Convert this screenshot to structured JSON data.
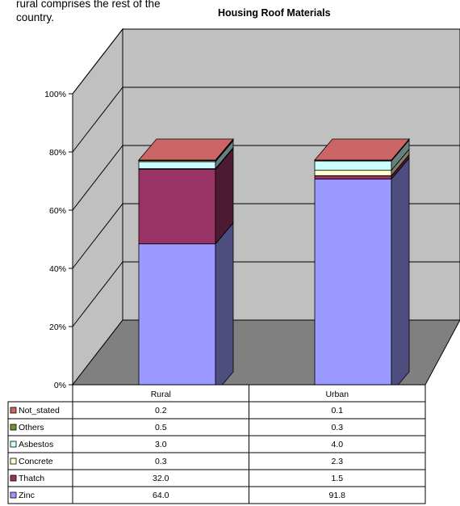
{
  "intro_text": "rural comprises the rest of the\ncountry.",
  "chart_data": {
    "type": "bar",
    "stacked": true,
    "three_d": true,
    "title": "Housing Roof Materials",
    "xlabel": "",
    "ylabel": "",
    "ylim_percent": [
      0,
      100
    ],
    "y_ticks": [
      "0%",
      "20%",
      "40%",
      "60%",
      "80%",
      "100%"
    ],
    "categories": [
      "Rural",
      "Urban"
    ],
    "series": [
      {
        "name": "Zinc",
        "values": [
          64.0,
          91.8
        ],
        "display": [
          "64.0",
          "91.8"
        ],
        "color": "#9999ff"
      },
      {
        "name": "Thatch",
        "values": [
          32.0,
          1.5
        ],
        "display": [
          "32.0",
          "1.5"
        ],
        "color": "#993366"
      },
      {
        "name": "Concrete",
        "values": [
          0.3,
          2.3
        ],
        "display": [
          "0.3",
          "2.3"
        ],
        "color": "#ffffcc"
      },
      {
        "name": "Asbestos",
        "values": [
          3.0,
          4.0
        ],
        "display": [
          "3.0",
          "4.0"
        ],
        "color": "#ccffff"
      },
      {
        "name": "Others",
        "values": [
          0.5,
          0.3
        ],
        "display": [
          "0.5",
          "0.3"
        ],
        "color": "#669933"
      },
      {
        "name": "Not_stated",
        "values": [
          0.2,
          0.1
        ],
        "display": [
          "0.2",
          "0.1"
        ],
        "color": "#cc6666"
      }
    ],
    "data_table": true,
    "grid": true,
    "wall_color": "#c0c0c0",
    "floor_color": "#808080"
  }
}
